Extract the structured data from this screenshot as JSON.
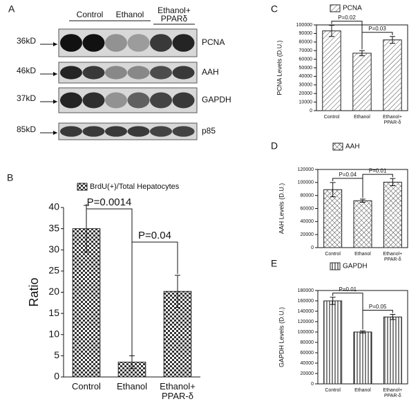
{
  "panel_a": {
    "label": "A",
    "groups": [
      "Control",
      "Ethanol",
      "Ethanol+ PPARδ"
    ],
    "rows": [
      {
        "marker": "36kD",
        "protein": "PCNA"
      },
      {
        "marker": "46kD",
        "protein": "AAH"
      },
      {
        "marker": "37kD",
        "protein": "GAPDH"
      },
      {
        "marker": "85kD",
        "protein": "p85"
      }
    ]
  },
  "chart_data": [
    {
      "type": "bar",
      "label": "B",
      "legend": "BrdU(+)/Total Hepatocytes",
      "pattern": "checker",
      "ylabel": "Ratio",
      "categories": [
        "Control",
        "Ethanol",
        "Ethanol+ PPAR-δ"
      ],
      "values": [
        35,
        3.5,
        20.2
      ],
      "errors": [
        5.5,
        1.5,
        3.8
      ],
      "ylim": [
        0,
        40
      ],
      "yticks": [
        0,
        5,
        10,
        15,
        20,
        25,
        30,
        35,
        40
      ],
      "annotations": [
        "P=0.0014",
        "P=0.04"
      ]
    },
    {
      "type": "bar",
      "label": "C",
      "legend": "PCNA",
      "pattern": "diagonal",
      "ylabel": "PCNA Levels (D.U.)",
      "categories": [
        "Control",
        "Ethanol",
        "Ethanol+ PPAR-δ"
      ],
      "values": [
        93000,
        67000,
        82500
      ],
      "errors": [
        6500,
        3000,
        4000
      ],
      "ylim": [
        0,
        100000
      ],
      "yticks": [
        0,
        10000,
        20000,
        30000,
        40000,
        50000,
        60000,
        70000,
        80000,
        90000,
        100000
      ],
      "annotations": [
        "P=0.02",
        "P=0.03"
      ]
    },
    {
      "type": "bar",
      "label": "D",
      "legend": "AAH",
      "pattern": "crosshatch",
      "ylabel": "AAH Levels (D.U.)",
      "categories": [
        "Control",
        "Ethanol",
        "Ethanol+ PPAR-δ"
      ],
      "values": [
        89000,
        72000,
        100500
      ],
      "errors": [
        11000,
        2500,
        5500
      ],
      "ylim": [
        0,
        120000
      ],
      "yticks": [
        0,
        20000,
        40000,
        60000,
        80000,
        100000,
        120000
      ],
      "annotations": [
        "P=0.04",
        "P=0.01"
      ]
    },
    {
      "type": "bar",
      "label": "E",
      "legend": "GAPDH",
      "pattern": "vertical",
      "ylabel": "GAPDH Levels (D.U.)",
      "categories": [
        "Control",
        "Ethanol",
        "Ethanol+ PPAR-δ"
      ],
      "values": [
        160000,
        100000,
        129000
      ],
      "errors": [
        7000,
        2000,
        5000
      ],
      "ylim": [
        0,
        180000
      ],
      "yticks": [
        0,
        20000,
        40000,
        60000,
        80000,
        100000,
        120000,
        140000,
        160000,
        180000
      ],
      "annotations": [
        "P=0.01",
        "P=0.05"
      ]
    }
  ]
}
